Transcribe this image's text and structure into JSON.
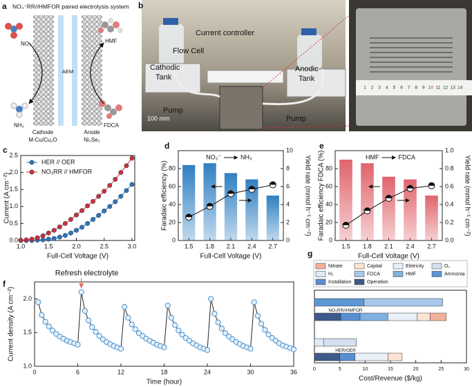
{
  "panel_labels": [
    "a",
    "b",
    "c",
    "d",
    "e",
    "f",
    "g"
  ],
  "schematic": {
    "title": "NO₃⁻RR//HMFOR paired electrolysis system",
    "left_reactant": "NO₃⁻",
    "right_reactant": "HMF",
    "membrane": "AEM",
    "left_product": "NH₃",
    "right_product": "FDCA",
    "cathode": "Cathode",
    "cathode_material": "M-Cu/Cu₂O",
    "anode": "Anode",
    "anode_material": "Ni₃Se₂"
  },
  "photo": {
    "controller": "Current controller",
    "cell": "Flow Cell",
    "cathodic_tank": [
      "Cathodic",
      "Tank"
    ],
    "anodic_tank": [
      "Anodic",
      "Tank"
    ],
    "pumps": [
      "Pump",
      "Pump"
    ],
    "scale": "100 mm",
    "ruler": [
      1,
      2,
      3,
      4,
      5,
      6,
      7,
      8,
      9,
      10,
      11,
      12,
      13,
      14
    ]
  },
  "chart_data": [
    {
      "type": "line",
      "xlabel": "Full-Cell Voltage (V)",
      "ylabel": "Current (A cm⁻²)",
      "x": [
        1,
        1.1,
        1.2,
        1.3,
        1.4,
        1.5,
        1.6,
        1.7,
        1.8,
        1.9,
        2,
        2.1,
        2.2,
        2.3,
        2.4,
        2.5,
        2.6,
        2.7,
        2.8,
        2.9,
        3
      ],
      "series": [
        {
          "name": "HER // OER",
          "color": "#2e75b6",
          "values": [
            0,
            0,
            0,
            0.01,
            0.02,
            0.04,
            0.06,
            0.1,
            0.15,
            0.22,
            0.3,
            0.39,
            0.5,
            0.62,
            0.74,
            0.87,
            1,
            1.14,
            1.3,
            1.47,
            1.65
          ]
        },
        {
          "name": "NO₃RR // HMFOR",
          "color": "#c8323c",
          "values": [
            0.01,
            0.02,
            0.04,
            0.08,
            0.14,
            0.22,
            0.3,
            0.4,
            0.5,
            0.62,
            0.75,
            0.88,
            1.02,
            1.15,
            1.3,
            1.45,
            1.62,
            1.8,
            2,
            2.2,
            2.42
          ]
        }
      ],
      "xlim": [
        1,
        3.05
      ],
      "xticks": [
        {
          "value": 1,
          "label": "1.0"
        },
        1.5,
        {
          "value": 2,
          "label": "2.0"
        },
        2.5,
        {
          "value": 3,
          "label": "3.0"
        }
      ],
      "ylim": [
        0,
        2.5
      ],
      "yticks": [
        {
          "value": 0,
          "label": "0.0"
        },
        0.5,
        {
          "value": 1,
          "label": "1.0"
        },
        1.5,
        {
          "value": 2,
          "label": "2.0"
        },
        2.5
      ],
      "legend": "upper left"
    },
    {
      "type": "bar_line",
      "xlabel": "Full-Cell Voltage (V)",
      "ylabel": "Faradaic efficiency (%)",
      "y2label": "Yield rate (mmol h⁻¹ cm⁻²)",
      "annotation": [
        "NO₃⁻",
        "NH₃"
      ],
      "categories": [
        "1.5",
        "1.8",
        "2.1",
        "2.4",
        "2.7"
      ],
      "series": [
        {
          "color": "#2f7fc1",
          "values": [
            84,
            86,
            75,
            68,
            50
          ]
        },
        {
          "color": "#111111",
          "axis": "y2",
          "values": [
            2.6,
            3.8,
            5.2,
            5.7,
            6.2
          ]
        }
      ],
      "ylim": [
        0,
        100
      ],
      "yticks": [
        0,
        20,
        40,
        60,
        80
      ],
      "y2lim": [
        0,
        10
      ],
      "y2ticks": [
        0,
        2,
        4,
        6,
        8,
        10
      ]
    },
    {
      "type": "bar_line",
      "xlabel": "Full-Cell Voltage (V)",
      "ylabel": "Faradaic efficiency FDCA (%)",
      "y2label": "Yield rate (mmol h⁻¹ cm⁻²)",
      "annotation": [
        "HMF",
        "FDCA"
      ],
      "categories": [
        "1.5",
        "1.8",
        "2.1",
        "2.4",
        "2.7"
      ],
      "series": [
        {
          "color": "#e0646c",
          "values": [
            90,
            86,
            71,
            68,
            50
          ]
        },
        {
          "color": "#111111",
          "axis": "y2",
          "values": [
            0.17,
            0.33,
            0.47,
            0.58,
            0.61
          ]
        }
      ],
      "ylim": [
        0,
        100
      ],
      "yticks": [
        0,
        20,
        40,
        60,
        80
      ],
      "y2lim": [
        0,
        1
      ],
      "y2ticks": [
        {
          "value": 0,
          "label": "0.0"
        },
        0.2,
        0.4,
        0.6,
        0.8,
        {
          "value": 1,
          "label": "1.0"
        }
      ]
    },
    {
      "type": "line",
      "xlabel": "Time (hour)",
      "ylabel": "Current density (A cm⁻²)",
      "annotation": "Refresh electrolyte",
      "line_color": "#222222",
      "marker_face": "#e2f0fb",
      "x": [
        0.5,
        1,
        1.5,
        2,
        2.5,
        3,
        3.5,
        4,
        4.5,
        5,
        5.5,
        6,
        6.5,
        7,
        7.5,
        8,
        8.5,
        9,
        9.5,
        10,
        10.5,
        11,
        11.5,
        12,
        12.5,
        13,
        13.5,
        14,
        14.5,
        15,
        15.5,
        16,
        16.5,
        17,
        17.5,
        18,
        18.5,
        19,
        19.5,
        20,
        20.5,
        21,
        21.5,
        22,
        22.5,
        23,
        23.5,
        24,
        24.5,
        25,
        25.5,
        26,
        26.5,
        27,
        27.5,
        28,
        28.5,
        29,
        29.5,
        30,
        30.5,
        31,
        31.5,
        32,
        32.5,
        33,
        33.5,
        34,
        34.5,
        35,
        35.5,
        36
      ],
      "series": [
        {
          "color": "#3a86c8",
          "values": [
            1.95,
            1.76,
            1.66,
            1.59,
            1.53,
            1.48,
            1.44,
            1.41,
            1.38,
            1.36,
            1.34,
            1.32,
            2.1,
            1.82,
            1.68,
            1.58,
            1.51,
            1.45,
            1.4,
            1.36,
            1.33,
            1.3,
            1.28,
            1.26,
            1.88,
            1.72,
            1.62,
            1.55,
            1.49,
            1.45,
            1.41,
            1.38,
            1.35,
            1.32,
            1.3,
            1.28,
            1.9,
            1.72,
            1.61,
            1.53,
            1.47,
            1.42,
            1.38,
            1.34,
            1.31,
            1.28,
            1.26,
            1.24,
            2,
            1.78,
            1.65,
            1.56,
            1.49,
            1.44,
            1.4,
            1.36,
            1.33,
            1.3,
            1.28,
            1.26,
            1.95,
            1.75,
            1.63,
            1.54,
            1.47,
            1.42,
            1.38,
            1.34,
            1.31,
            1.29,
            1.27,
            1.25
          ]
        }
      ],
      "xlim": [
        0,
        36
      ],
      "xticks": [
        0,
        6,
        12,
        18,
        24,
        30,
        36
      ],
      "ylim": [
        1,
        2.25
      ],
      "yticks": [
        {
          "value": 1,
          "label": "1.0"
        },
        1.5,
        {
          "value": 2,
          "label": "2.0"
        }
      ]
    },
    {
      "type": "hbar_stacked",
      "xlabel": "Cost/Revenue ($/kg)",
      "categories": [
        null,
        "NO₃RR//HMFOR",
        null,
        "HER/OER"
      ],
      "series": [
        {
          "name": "Nitrate",
          "color": "#f3b19b",
          "values": [
            null,
            3.2,
            null,
            null
          ]
        },
        {
          "name": "Capital",
          "color": "#fce3d3",
          "values": [
            null,
            2.5,
            null,
            2.8
          ]
        },
        {
          "name": "Eletricity",
          "color": "#eaf0f8",
          "values": [
            null,
            5.8,
            null,
            6.5
          ]
        },
        {
          "name": "O₂",
          "color": "#d3e0ef",
          "values": [
            null,
            null,
            6.5,
            null
          ]
        },
        {
          "name": "H₂",
          "color": "#dfeaf6",
          "values": [
            null,
            null,
            1.8,
            null
          ]
        },
        {
          "name": "FDCA",
          "color": "#a7c8ea",
          "values": [
            15.5,
            null,
            null,
            null
          ]
        },
        {
          "name": "HMF",
          "color": "#80b1e0",
          "values": [
            null,
            5.5,
            null,
            null
          ]
        },
        {
          "name": "Ammonia",
          "color": "#5d97d3",
          "values": [
            9.8,
            null,
            null,
            null
          ]
        },
        {
          "name": "Installation",
          "color": "#5a8ed3",
          "values": [
            null,
            3.8,
            null,
            3
          ]
        },
        {
          "name": "Operation",
          "color": "#3d5a8a",
          "values": [
            null,
            5.2,
            null,
            5
          ]
        }
      ],
      "xlim": [
        0,
        30
      ],
      "xticks": [
        0,
        5,
        10,
        15,
        20,
        25,
        30
      ]
    }
  ]
}
